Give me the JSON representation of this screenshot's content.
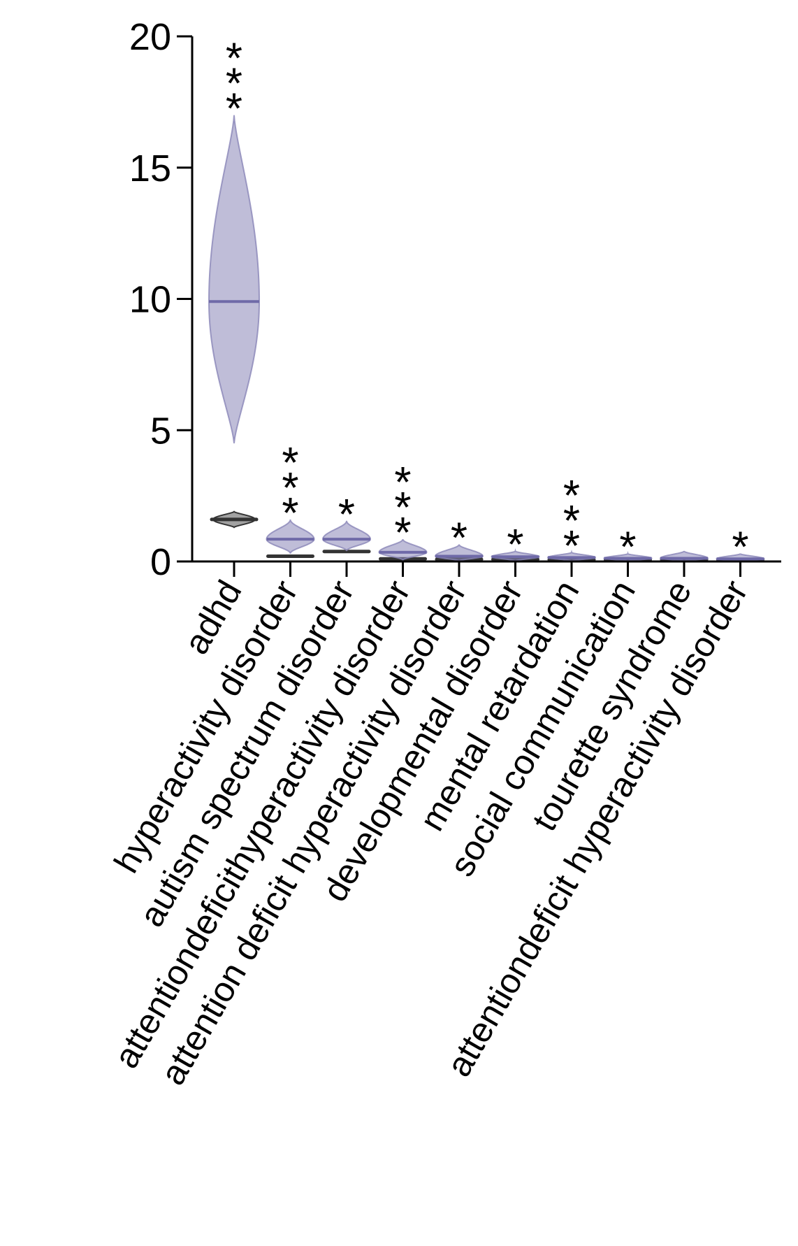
{
  "chart_data": {
    "type": "violin",
    "title": "",
    "xlabel": "",
    "ylabel": "",
    "ylim": [
      0,
      20
    ],
    "yticks": [
      "0",
      "5",
      "10",
      "15",
      "20"
    ],
    "ytick_values": [
      0,
      5,
      10,
      15,
      20
    ],
    "grid": false,
    "colors": {
      "series": "#8a86b8",
      "series_line": "#6f6aa8",
      "reference": "#333333"
    },
    "categories": [
      "adhd",
      "hyperactivity disorder",
      "autism spectrum disorder",
      "attentiondeficithyperactivity disorder",
      "attention deficit hyperactivity disorder",
      "developmental disorder",
      "mental retardation",
      "social communication",
      "tourette syndrome",
      "attentiondeficit hyperactivity disorder"
    ],
    "significance": [
      "***",
      "***",
      "*",
      "***",
      "*",
      "*",
      "***",
      "*",
      "",
      "*"
    ],
    "series": [
      {
        "median": [
          9.9,
          0.85,
          0.85,
          0.35,
          0.2,
          0.18,
          0.15,
          0.12,
          0.12,
          0.1
        ],
        "min": [
          4.5,
          0.3,
          0.4,
          0.05,
          0.02,
          0.02,
          0.02,
          0.02,
          0.02,
          0.02
        ],
        "max": [
          17.0,
          1.6,
          1.55,
          0.85,
          0.65,
          0.4,
          0.35,
          0.3,
          0.4,
          0.3
        ]
      },
      {
        "median": [
          1.6,
          0.2,
          0.38,
          0.1,
          0.08,
          0.08,
          0.07,
          0.07,
          0.07,
          0.07
        ],
        "min": [
          1.3,
          0.15,
          0.33,
          0.07,
          0.05,
          0.05,
          0.05,
          0.05,
          0.05,
          0.05
        ],
        "max": [
          1.9,
          0.25,
          0.43,
          0.13,
          0.11,
          0.11,
          0.1,
          0.1,
          0.1,
          0.1
        ]
      }
    ]
  }
}
